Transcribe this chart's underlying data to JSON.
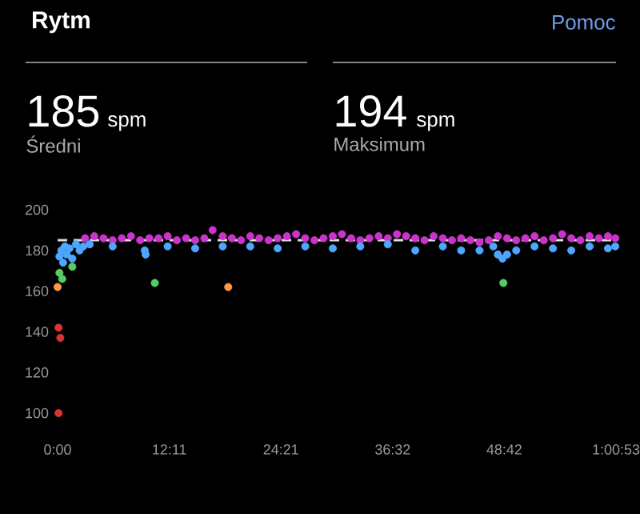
{
  "chart_data": {
    "type": "scatter",
    "title": "Rytm",
    "annotations": [
      "Pomoc",
      "185",
      "spm",
      "Średni",
      "194",
      "spm",
      "Maksimum"
    ],
    "xlim": [
      0,
      60.88
    ],
    "ylim": [
      100,
      200
    ],
    "xticks": [
      {
        "value": 0,
        "label": "0:00"
      },
      {
        "value": 12.18,
        "label": "12:11"
      },
      {
        "value": 24.35,
        "label": "24:21"
      },
      {
        "value": 36.53,
        "label": "36:32"
      },
      {
        "value": 48.7,
        "label": "48:42"
      },
      {
        "value": 60.88,
        "label": "1:00:53"
      }
    ],
    "yticks": [
      100,
      120,
      140,
      160,
      180,
      200
    ],
    "marker": "circle",
    "ref_lines": [
      {
        "axis": "y",
        "value": 185,
        "color": "#dddddd",
        "line_style": "dashed"
      }
    ],
    "series": [
      {
        "color": "#cc33cc",
        "x": [
          3,
          4,
          5,
          6,
          7,
          8,
          9,
          10,
          11,
          12,
          13,
          14,
          15,
          16,
          16.9,
          18,
          19,
          20,
          21,
          22,
          23,
          24,
          25,
          26,
          27,
          28,
          29,
          30,
          31,
          32,
          33,
          34,
          35,
          36,
          37,
          38,
          39,
          40,
          41,
          42,
          43,
          44,
          45,
          46,
          47,
          48,
          49,
          50,
          51,
          52,
          53,
          54,
          55,
          56,
          57,
          58,
          59,
          60,
          60.8
        ],
        "values": [
          186,
          187,
          186,
          185,
          186,
          187,
          185,
          186,
          186,
          187,
          185,
          186,
          185,
          186,
          190,
          187,
          186,
          185,
          187,
          186,
          185,
          186,
          187,
          188,
          186,
          185,
          186,
          187,
          188,
          186,
          185,
          186,
          187,
          186,
          188,
          187,
          186,
          185,
          187,
          186,
          185,
          186,
          185,
          184,
          185,
          187,
          186,
          185,
          186,
          187,
          185,
          186,
          188,
          186,
          185,
          187,
          186,
          187,
          186
        ]
      },
      {
        "color": "#4da6ff",
        "x": [
          0.2,
          0.4,
          0.6,
          0.8,
          1,
          1.3,
          1.6,
          2,
          2.4,
          2.8,
          3.5,
          6,
          9.5,
          9.6,
          12,
          15,
          18,
          21,
          24,
          27,
          30,
          33,
          36,
          39,
          42,
          44,
          46,
          47.5,
          48,
          48.5,
          49,
          50,
          52,
          54,
          56,
          58,
          60,
          60.8
        ],
        "values": [
          177,
          180,
          174,
          182,
          178,
          181,
          176,
          183,
          180,
          182,
          183,
          182,
          180,
          178,
          182,
          181,
          182,
          182,
          181,
          182,
          181,
          182,
          183,
          180,
          182,
          180,
          180,
          182,
          178,
          176,
          178,
          180,
          182,
          181,
          180,
          182,
          181,
          182
        ]
      },
      {
        "color": "#55cc66",
        "x": [
          0.2,
          0.5,
          1.6,
          10.6,
          48.6
        ],
        "values": [
          169,
          166,
          172,
          164,
          164
        ]
      },
      {
        "color": "#ff9944",
        "x": [
          0,
          18.6
        ],
        "values": [
          162,
          162
        ]
      },
      {
        "color": "#dd3333",
        "x": [
          0.1,
          0.3,
          0.1
        ],
        "values": [
          142,
          137,
          100
        ]
      }
    ]
  }
}
